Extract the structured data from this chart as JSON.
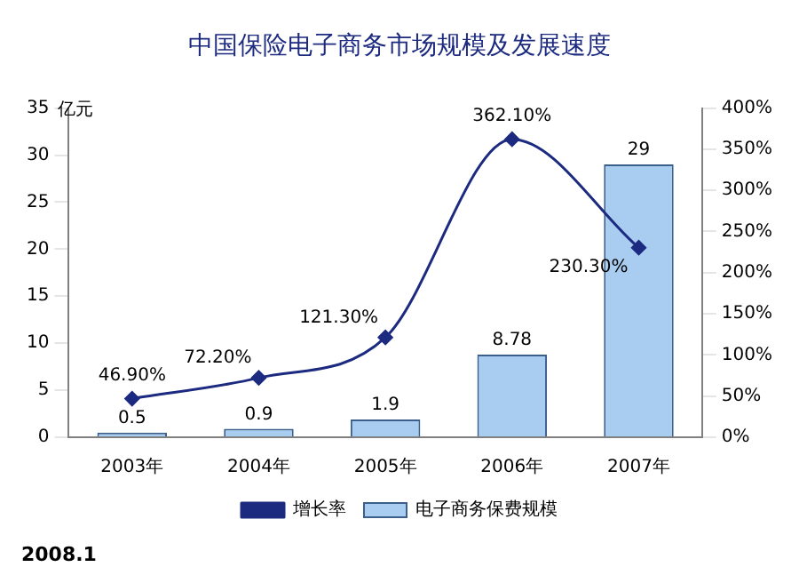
{
  "chart_data": {
    "type": "bar",
    "title": "中国保险电子商务市场规模及发展速度",
    "ylabel": "亿元",
    "categories": [
      "2003年",
      "2004年",
      "2005年",
      "2006年",
      "2007年"
    ],
    "series": [
      {
        "name": "电子商务保费规模",
        "color": "#a8cdf0",
        "values": [
          0.5,
          0.9,
          1.9,
          8.78,
          29
        ]
      },
      {
        "name": "增长率",
        "type": "line",
        "axis": "y2",
        "color": "#1c2a80",
        "values": [
          46.9,
          72.2,
          121.3,
          362.1,
          230.3
        ],
        "value_labels": [
          "46.90%",
          "72.20%",
          "121.30%",
          "362.10%",
          "230.30%"
        ]
      }
    ],
    "ylim": [
      0,
      35
    ],
    "yticks": [
      0,
      5,
      10,
      15,
      20,
      25,
      30,
      35
    ],
    "y2lim": [
      0,
      400
    ],
    "y2ticks": [
      {
        "value": 0,
        "label": "0%"
      },
      {
        "value": 50,
        "label": "50%"
      },
      {
        "value": 100,
        "label": "100%"
      },
      {
        "value": 150,
        "label": "150%"
      },
      {
        "value": 200,
        "label": "200%"
      },
      {
        "value": 250,
        "label": "250%"
      },
      {
        "value": 300,
        "label": "300%"
      },
      {
        "value": 350,
        "label": "350%"
      },
      {
        "value": 400,
        "label": "400%"
      }
    ],
    "data_labels": true,
    "legend": "bottom",
    "marker": "diamond",
    "grid": false,
    "annotations": [
      "2008.1"
    ]
  }
}
